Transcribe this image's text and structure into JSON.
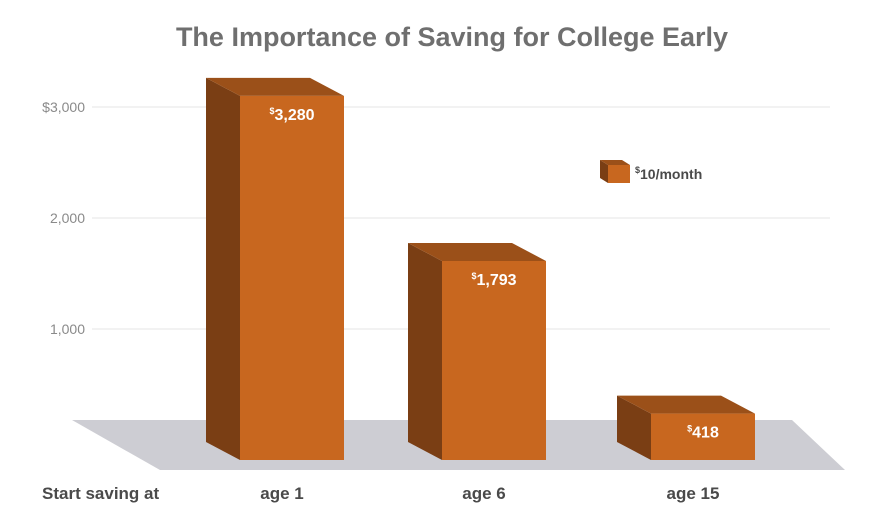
{
  "chart_data": {
    "type": "bar",
    "title": "The Importance of Saving for College Early",
    "xlabel": "Start saving at",
    "ylabel": "",
    "categories": [
      "age 1",
      "age 6",
      "age 15"
    ],
    "series": [
      {
        "name": "$10/month",
        "values": [
          3280,
          1793,
          418
        ]
      }
    ],
    "data_labels": [
      "3,280",
      "1,793",
      "418"
    ],
    "data_label_prefix": "$",
    "y_ticks": [
      {
        "value": 1000,
        "label": "1,000"
      },
      {
        "value": 2000,
        "label": "2,000"
      },
      {
        "value": 3000,
        "label": "$3,000"
      }
    ],
    "ylim": [
      0,
      3500
    ],
    "grid": true,
    "legend_position": "top-right",
    "three_d": true,
    "colors": {
      "front": "#c8671f",
      "side": "#7a3e14",
      "top": "#9b5019",
      "floor": "#cdcdd3",
      "title": "#6f6f6f"
    }
  }
}
